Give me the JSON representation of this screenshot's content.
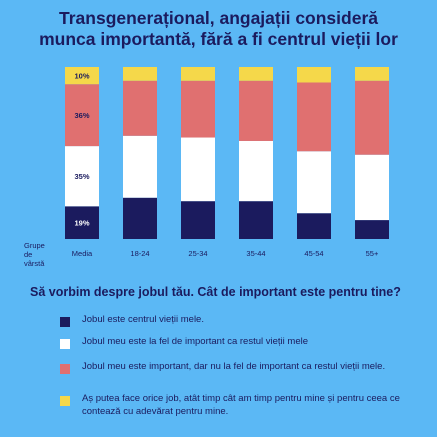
{
  "title": {
    "line1": "Transgenerațional, angajații consideră",
    "line2": "munca importantă, fără a fi centrul vieții lor"
  },
  "axis_label": [
    "Grupe",
    "de",
    "vârstă"
  ],
  "question": "Să vorbim despre jobul tău. Cât de important este pentru tine?",
  "colors": {
    "background": "#5BB8F5",
    "navy": "#1B1B5E",
    "white": "#FFFFFF",
    "coral": "#E07070",
    "yellow": "#F5D84A"
  },
  "chart_data": {
    "type": "bar",
    "stacked": true,
    "categories": [
      "Media",
      "18-24",
      "25-34",
      "35-44",
      "45-54",
      "55+"
    ],
    "series": [
      {
        "name": "Jobul este centrul vieții mele.",
        "color": "#1B1B5E",
        "values": [
          19,
          24,
          22,
          22,
          15,
          11
        ]
      },
      {
        "name": "Jobul meu este la fel de important ca restul vieții mele",
        "color": "#FFFFFF",
        "values": [
          35,
          36,
          37,
          35,
          36,
          38
        ]
      },
      {
        "name": "Jobul meu este important, dar nu la fel de important ca restul vieții mele.",
        "color": "#E07070",
        "values": [
          36,
          32,
          33,
          35,
          40,
          43
        ]
      },
      {
        "name": "Aș putea face orice job, atât timp cât am timp pentru mine și pentru ceea ce contează cu adevărat pentru mine.",
        "color": "#F5D84A",
        "values": [
          10,
          8,
          8,
          8,
          9,
          8
        ]
      }
    ],
    "data_labels": {
      "category": "Media",
      "labels": [
        "19%",
        "35%",
        "36%",
        "10%"
      ]
    },
    "ylim": [
      0,
      100
    ]
  }
}
